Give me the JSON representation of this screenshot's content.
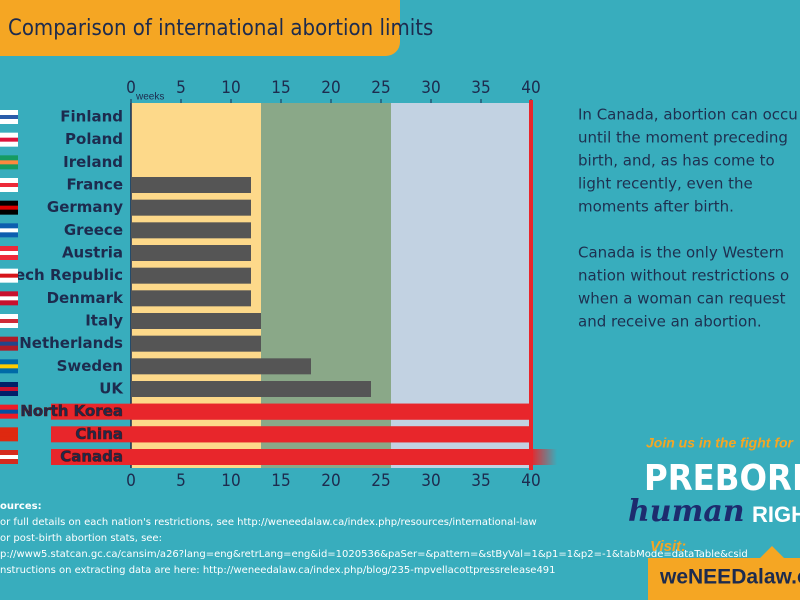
{
  "chart_data": {
    "type": "hbar",
    "title": "Comparison of international abortion limits",
    "x_label": "weeks",
    "categories": [
      "Finland",
      "Poland",
      "Ireland",
      "France",
      "Germany",
      "Greece",
      "Austria",
      "Czech Republic",
      "Denmark",
      "Italy",
      "Netherlands",
      "Sweden",
      "UK",
      "North Korea",
      "China",
      "Canada"
    ],
    "values": [
      0,
      0,
      0,
      12,
      12,
      12,
      12,
      12,
      12,
      13,
      13,
      18,
      24,
      40,
      40,
      40
    ],
    "colors": [
      "#555555",
      "#555555",
      "#555555",
      "#555555",
      "#555555",
      "#555555",
      "#555555",
      "#555555",
      "#555555",
      "#555555",
      "#555555",
      "#555555",
      "#555555",
      "#e8262b",
      "#e8262b",
      "#e8262b"
    ],
    "highlight_color": "#e8262b",
    "bands": [
      {
        "from": 0,
        "to": 13,
        "color": "#fdd98a"
      },
      {
        "from": 13,
        "to": 26,
        "color": "#8aa888"
      },
      {
        "from": 26,
        "to": 40,
        "color": "#c2d2e2"
      }
    ],
    "xlim": [
      0,
      40
    ],
    "xticks": [
      0,
      5,
      10,
      15,
      20,
      25,
      30,
      35,
      40
    ]
  },
  "side_text": [
    "In Canada, abortion can occu",
    "until the moment preceding",
    "birth, and, as has come to",
    "light recently, even the",
    "moments after birth.",
    "Canada is the only Western",
    "nation without restrictions o",
    "when a woman can request",
    "and receive an abortion."
  ],
  "sources": [
    "ources:",
    "or full details on each nation's restrictions, see http://weneedalaw.ca/index.php/resources/international-law",
    "or post-birth abortion stats, see:",
    "p://www5.statcan.gc.ca/cansim/a26?lang=eng&retrLang=eng&id=1020536&paSer=&pattern=&stByVal=1&p1=1&p2=-1&tabMode=dataTable&csid",
    "nstructions on extracting data are here: http://weneedalaw.ca/index.php/blog/235-mpvellacottpressrelease491"
  ],
  "promo": {
    "tagline": "Join us in the fight for",
    "line1": "PREBORN",
    "line2": "human",
    "line3": "RIGHTS",
    "visit": "Visit:",
    "url": "weNEEDalaw.ca"
  }
}
